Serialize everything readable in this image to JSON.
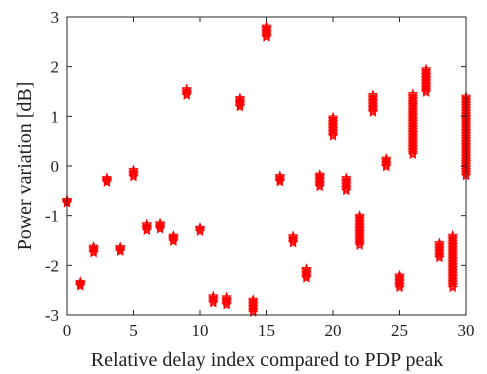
{
  "chart_data": {
    "type": "scatter",
    "xlabel": "Relative delay index compared to PDP peak",
    "ylabel": "Power variation [dB]",
    "xlim": [
      0,
      30
    ],
    "ylim": [
      -3,
      3
    ],
    "xticks": [
      0,
      5,
      10,
      15,
      20,
      25,
      30
    ],
    "yticks": [
      -3,
      -2,
      -1,
      0,
      1,
      2,
      3
    ],
    "grid": false,
    "marker": "star",
    "color": "#ff0000",
    "clusters": [
      {
        "x": 0,
        "y_min": -0.75,
        "y_max": -0.68
      },
      {
        "x": 1,
        "y_min": -2.42,
        "y_max": -2.33
      },
      {
        "x": 2,
        "y_min": -1.75,
        "y_max": -1.62
      },
      {
        "x": 3,
        "y_min": -0.33,
        "y_max": -0.24
      },
      {
        "x": 4,
        "y_min": -1.72,
        "y_max": -1.63
      },
      {
        "x": 5,
        "y_min": -0.22,
        "y_max": -0.08
      },
      {
        "x": 6,
        "y_min": -1.3,
        "y_max": -1.17
      },
      {
        "x": 7,
        "y_min": -1.27,
        "y_max": -1.15
      },
      {
        "x": 8,
        "y_min": -1.52,
        "y_max": -1.4
      },
      {
        "x": 9,
        "y_min": 1.42,
        "y_max": 1.55
      },
      {
        "x": 10,
        "y_min": -1.32,
        "y_max": -1.24
      },
      {
        "x": 11,
        "y_min": -2.76,
        "y_max": -2.62
      },
      {
        "x": 12,
        "y_min": -2.8,
        "y_max": -2.64
      },
      {
        "x": 13,
        "y_min": 1.19,
        "y_max": 1.37
      },
      {
        "x": 14,
        "y_min": -2.95,
        "y_max": -2.69
      },
      {
        "x": 15,
        "y_min": 2.59,
        "y_max": 2.81
      },
      {
        "x": 16,
        "y_min": -0.32,
        "y_max": -0.2
      },
      {
        "x": 17,
        "y_min": -1.55,
        "y_max": -1.41
      },
      {
        "x": 18,
        "y_min": -2.26,
        "y_max": -2.07
      },
      {
        "x": 19,
        "y_min": -0.42,
        "y_max": -0.17
      },
      {
        "x": 20,
        "y_min": 0.6,
        "y_max": 0.98
      },
      {
        "x": 21,
        "y_min": -0.5,
        "y_max": -0.24
      },
      {
        "x": 22,
        "y_min": -1.6,
        "y_max": -1.0
      },
      {
        "x": 23,
        "y_min": 1.08,
        "y_max": 1.43
      },
      {
        "x": 24,
        "y_min": -0.02,
        "y_max": 0.15
      },
      {
        "x": 25,
        "y_min": -2.45,
        "y_max": -2.2
      },
      {
        "x": 26,
        "y_min": 0.23,
        "y_max": 1.45
      },
      {
        "x": 27,
        "y_min": 1.48,
        "y_max": 1.95
      },
      {
        "x": 28,
        "y_min": -1.85,
        "y_max": -1.55
      },
      {
        "x": 29,
        "y_min": -2.45,
        "y_max": -1.4
      },
      {
        "x": 30,
        "y_min": -0.2,
        "y_max": 1.4
      }
    ]
  }
}
